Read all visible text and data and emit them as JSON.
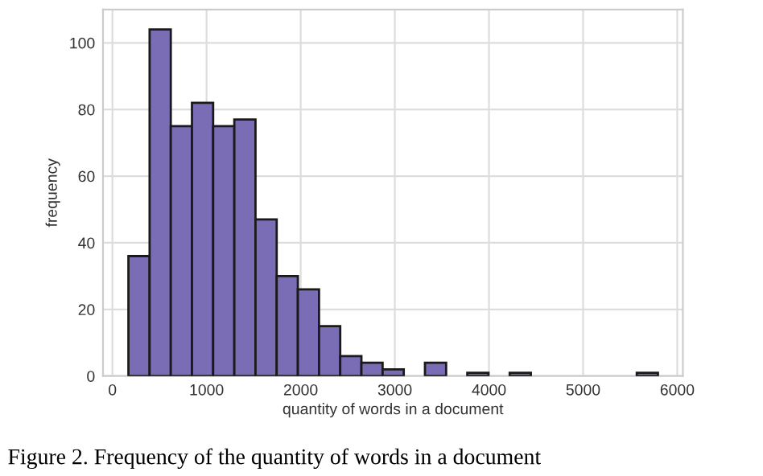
{
  "chart_data": {
    "type": "histogram",
    "xlabel": "quantity of words in a document",
    "ylabel": "frequency",
    "bins": [
      170,
      395,
      620,
      845,
      1070,
      1295,
      1520,
      1745,
      1970,
      2195,
      2420,
      2645,
      2870,
      3095,
      3320,
      3545,
      3770,
      3995,
      4220,
      4445,
      4670,
      4895,
      5120,
      5345,
      5570,
      5795
    ],
    "values": [
      36,
      104,
      75,
      82,
      75,
      77,
      47,
      30,
      26,
      15,
      6,
      4,
      2,
      0,
      4,
      0,
      1,
      0,
      1,
      0,
      0,
      0,
      0,
      0,
      1
    ],
    "color": "#7b6db5",
    "xlim": [
      -100,
      6060
    ],
    "ylim": [
      0,
      110
    ],
    "xticks": [
      0,
      1000,
      2000,
      3000,
      4000,
      5000,
      6000
    ],
    "yticks": [
      0,
      20,
      40,
      60,
      80,
      100
    ],
    "grid": true,
    "annotations": [
      "Figure 2. Frequency of the quantity of words in a document"
    ]
  }
}
